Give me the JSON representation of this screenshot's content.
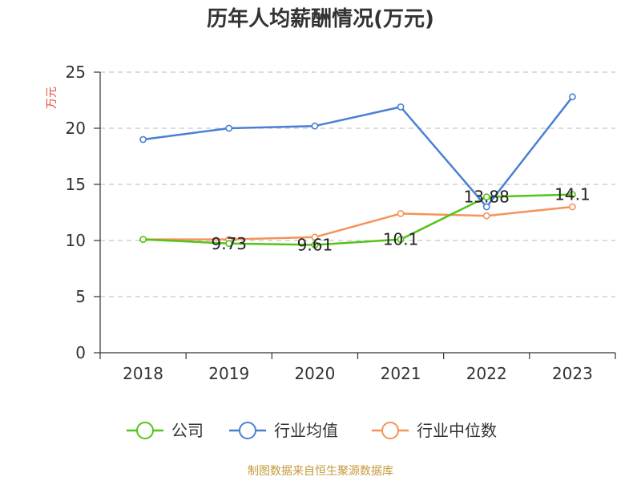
{
  "chart_data": {
    "type": "line",
    "title": "历年人均薪酬情况(万元)",
    "ylabel": "万元",
    "xlabel": "",
    "categories": [
      "2018",
      "2019",
      "2020",
      "2021",
      "2022",
      "2023"
    ],
    "ylim": [
      0,
      25
    ],
    "yticks": [
      "0",
      "5",
      "10",
      "15",
      "20",
      "25"
    ],
    "grid": true,
    "legend_position": "bottom",
    "series": [
      {
        "name": "公司",
        "color": "#52c41a",
        "values": [
          10.1,
          9.73,
          9.61,
          10.1,
          13.88,
          14.1
        ],
        "labels": [
          "",
          "9.73",
          "9.61",
          "10.1",
          "13.88",
          "14.1"
        ]
      },
      {
        "name": "行业均值",
        "color": "#4a7fd4",
        "values": [
          19.0,
          20.0,
          20.2,
          21.9,
          13.0,
          22.8
        ]
      },
      {
        "name": "行业中位数",
        "color": "#f4935a",
        "values": [
          10.1,
          10.1,
          10.3,
          12.4,
          12.2,
          13.0
        ]
      }
    ]
  },
  "source_text": "制图数据来自恒生聚源数据库",
  "colors": {
    "ylabel": "#e84a3c",
    "source": "#c49a3a"
  }
}
